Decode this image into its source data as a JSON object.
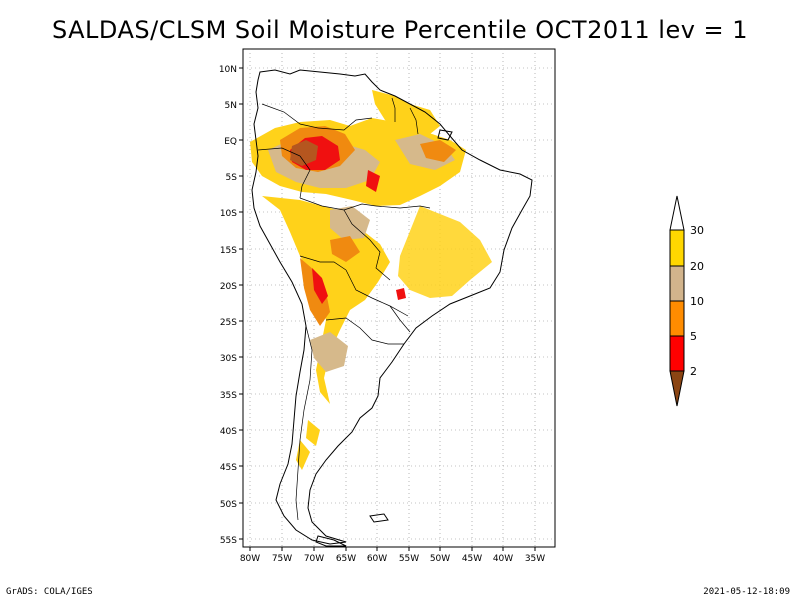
{
  "title": "SALDAS/CLSM Soil Moisture Percentile OCT2011 lev = 1",
  "footer": {
    "software": "GrADS: COLA/IGES",
    "timestamp": "2021-05-12-18:09"
  },
  "map": {
    "lat_range": [
      -56,
      12
    ],
    "lon_range": [
      -82,
      -34
    ],
    "lat_ticks": [
      "10N",
      "5N",
      "EQ",
      "5S",
      "10S",
      "15S",
      "20S",
      "25S",
      "30S",
      "35S",
      "40S",
      "45S",
      "50S",
      "55S"
    ],
    "lon_ticks": [
      "80W",
      "75W",
      "70W",
      "65W",
      "60W",
      "55W",
      "50W",
      "45W",
      "40W",
      "35W"
    ],
    "gridlines": "dotted"
  },
  "colorbar": {
    "labels": [
      "2",
      "5",
      "10",
      "20",
      "30"
    ],
    "colors": [
      "#8b4513",
      "#ff0000",
      "#ff8c00",
      "#d2b48c",
      "#ffd700",
      "#ffffff"
    ]
  },
  "legend_colors": {
    "dark": "#b5561f",
    "red": "#f01010",
    "orange": "#f08a10",
    "tan": "#d6b98b",
    "yellow": "#ffd21a"
  }
}
